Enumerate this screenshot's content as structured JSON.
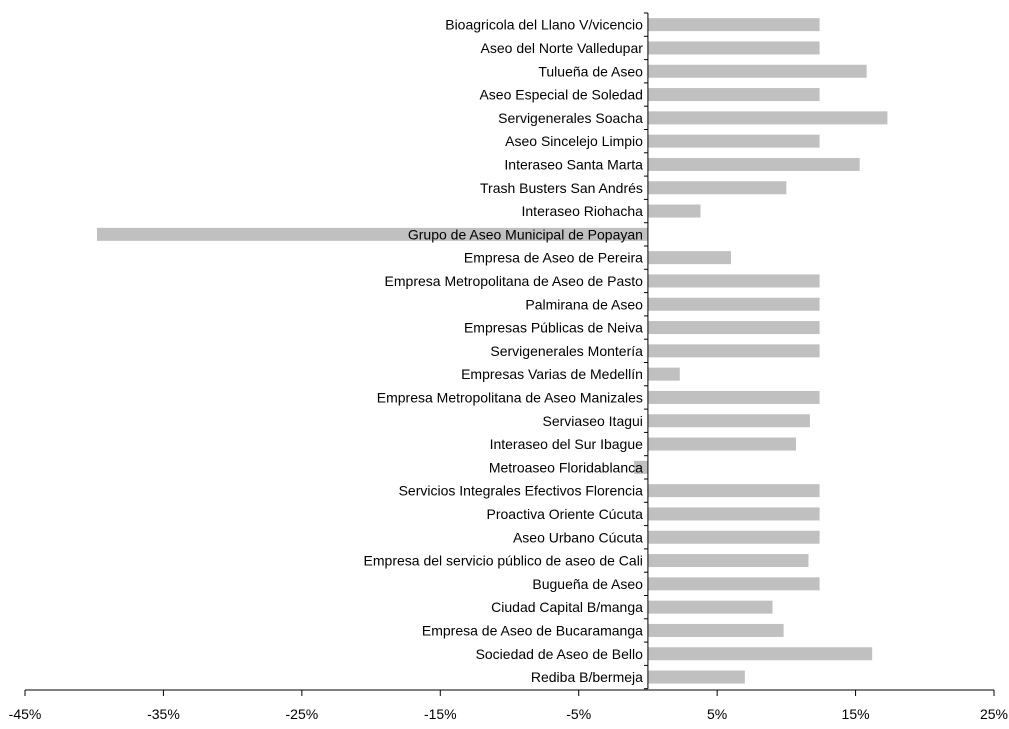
{
  "chart_data": {
    "type": "bar",
    "orientation": "horizontal",
    "categories": [
      "Bioagricola del Llano V/vicencio",
      "Aseo del Norte Valledupar",
      "Tulueña de Aseo",
      "Aseo Especial de Soledad",
      "Servigenerales Soacha",
      "Aseo Sincelejo Limpio",
      "Interaseo Santa Marta",
      "Trash Busters San Andrés",
      "Interaseo Riohacha",
      "Grupo de Aseo Municipal de Popayan",
      "Empresa de Aseo de Pereira",
      "Empresa Metropolitana de Aseo de Pasto",
      "Palmirana de Aseo",
      "Empresas Públicas de Neiva",
      "Servigenerales Montería",
      "Empresas Varias de Medellín",
      "Empresa Metropolitana de Aseo Manizales",
      "Serviaseo Itagui",
      "Interaseo del Sur Ibague",
      "Metroaseo Floridablanca",
      "Servicios Integrales Efectivos Florencia",
      "Proactiva Oriente Cúcuta",
      "Aseo Urbano Cúcuta",
      "Empresa del servicio público de aseo de Cali",
      "Bugueña de Aseo",
      "Ciudad Capital B/manga",
      "Empresa de Aseo de Bucaramanga",
      "Sociedad de Aseo de Bello",
      "Rediba B/bermeja"
    ],
    "values": [
      12.4,
      12.4,
      15.8,
      12.4,
      17.3,
      12.4,
      15.3,
      10.0,
      3.8,
      -39.8,
      6.0,
      12.4,
      12.4,
      12.4,
      12.4,
      2.3,
      12.4,
      11.7,
      10.7,
      -1.0,
      12.4,
      12.4,
      12.4,
      11.6,
      12.4,
      9.0,
      9.8,
      16.2,
      7.0
    ],
    "xlim": [
      -45,
      25
    ],
    "xticks": [
      -45,
      -35,
      -25,
      -15,
      -5,
      5,
      15,
      25
    ],
    "xtick_labels": [
      "-45%",
      "-35%",
      "-25%",
      "-15%",
      "-5%",
      "5%",
      "15%",
      "25%"
    ],
    "bar_color": "#c0c0c0",
    "axis_color": "#000000",
    "grid": false,
    "legend": "none",
    "title": "",
    "xlabel": "",
    "ylabel": ""
  }
}
